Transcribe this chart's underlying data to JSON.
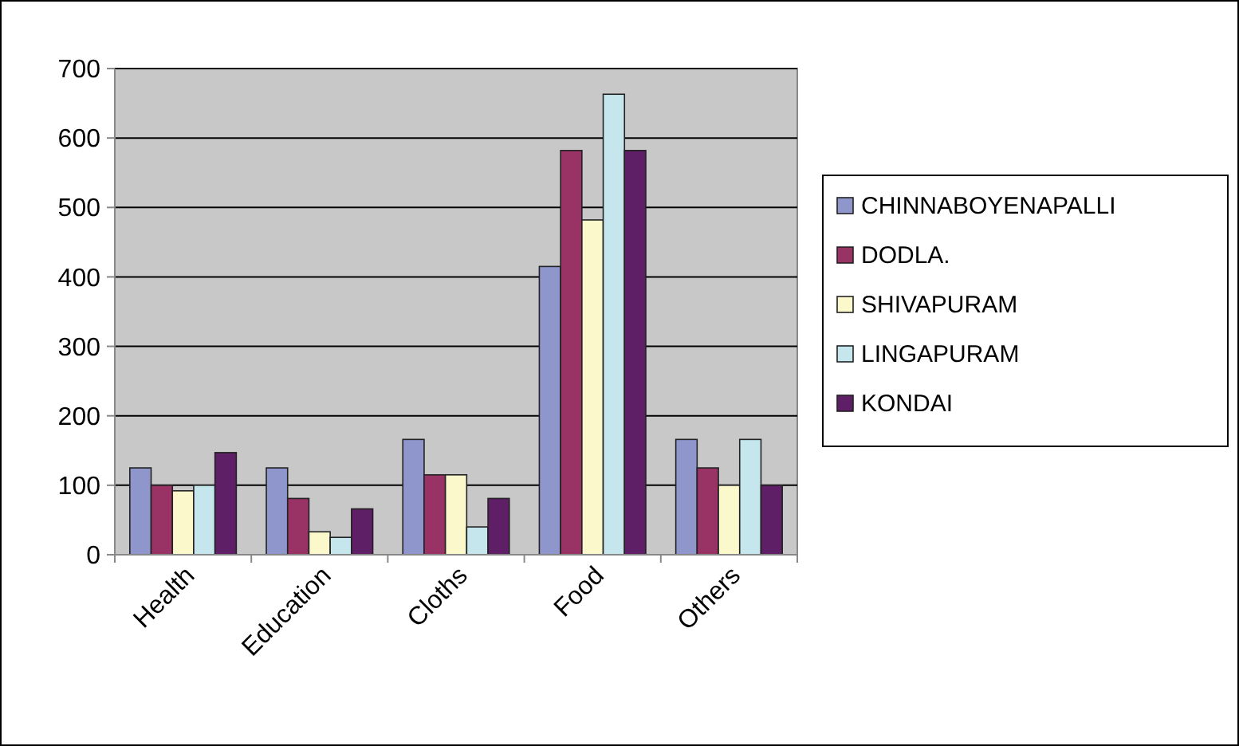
{
  "chart_data": {
    "type": "bar",
    "categories": [
      "Health",
      "Education",
      "Cloths",
      "Food",
      "Others"
    ],
    "series": [
      {
        "name": "CHINNABOYENAPALLI",
        "color": "#8e96cc",
        "values": [
          125,
          125,
          166,
          415,
          166
        ]
      },
      {
        "name": "DODLA.",
        "color": "#993366",
        "values": [
          100,
          81,
          115,
          582,
          125
        ]
      },
      {
        "name": "SHIVAPURAM",
        "color": "#fbf8cc",
        "values": [
          92,
          33,
          115,
          482,
          100
        ]
      },
      {
        "name": "LINGAPURAM",
        "color": "#c4e6ec",
        "values": [
          100,
          25,
          40,
          663,
          166
        ]
      },
      {
        "name": "KONDAI",
        "color": "#5f1f66",
        "values": [
          147,
          66,
          81,
          582,
          100
        ]
      }
    ],
    "ylim": [
      0,
      700
    ],
    "yticks": [
      0,
      100,
      200,
      300,
      400,
      500,
      600,
      700
    ],
    "grid": "y",
    "legend": "right"
  }
}
